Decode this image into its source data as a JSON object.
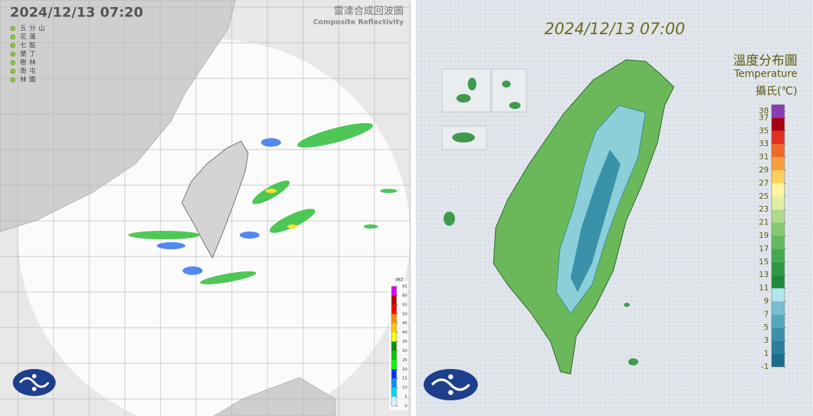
{
  "left_panel": {
    "timestamp": "2024/12/13  07:20",
    "title": "雷達合成回波圖",
    "subtitle": "Composite Reflectivity",
    "stations": [
      "五分山",
      "花蓮",
      "七股",
      "墾丁",
      "樹林",
      "南屯",
      "林園"
    ],
    "colorbar": {
      "unit": "dBZ",
      "lim": [
        0,
        65
      ],
      "ticks": [
        0,
        5,
        10,
        15,
        20,
        25,
        30,
        35,
        40,
        45,
        50,
        55,
        60,
        65
      ],
      "colors": [
        "#d8f4ff",
        "#00d8ff",
        "#0090ff",
        "#0030ff",
        "#00ff00",
        "#00c800",
        "#009600",
        "#ffff00",
        "#ffc800",
        "#ff8c00",
        "#ff0000",
        "#c00000",
        "#e000ff"
      ]
    }
  },
  "right_panel": {
    "timestamp": "2024/12/13 07:00",
    "title": "溫度分布圖",
    "subtitle": "Temperature",
    "unit": "攝氏(℃)",
    "colorbar": {
      "lim": [
        -1,
        39
      ],
      "ticks": [
        -1,
        1,
        3,
        5,
        7,
        9,
        11,
        13,
        15,
        17,
        19,
        21,
        23,
        25,
        27,
        29,
        31,
        33,
        35,
        37,
        38
      ],
      "colors": [
        "#1a6e8c",
        "#2a7f9a",
        "#3a92aa",
        "#55a8bc",
        "#78bfcf",
        "#b0e4ee",
        "#1e8a3c",
        "#2e9a44",
        "#46aa50",
        "#62ba5e",
        "#86ca70",
        "#aedb88",
        "#e2f0a6",
        "#fff5a0",
        "#fcd060",
        "#f8a040",
        "#f06a28",
        "#e03020",
        "#a80010",
        "#8a3cb0"
      ]
    }
  }
}
